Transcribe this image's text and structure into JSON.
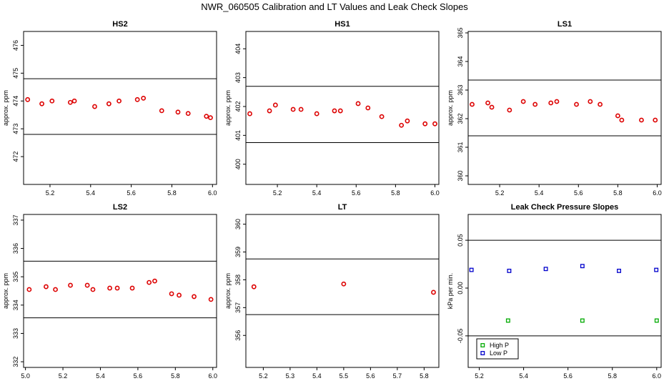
{
  "title": "NWR_060505  Calibration and LT Values and Leak Check Slopes",
  "chart_data": [
    {
      "type": "scatter",
      "title": "HS2",
      "ylabel": "approx. ppm",
      "xlim": [
        5.07,
        6.02
      ],
      "ylim": [
        471.0,
        476.5
      ],
      "xticks": [
        "5.2",
        "5.4",
        "5.6",
        "5.8",
        "6.0"
      ],
      "xtick_values": [
        5.2,
        5.4,
        5.6,
        5.8,
        6.0
      ],
      "yticks": [
        "472",
        "473",
        "474",
        "475",
        "476"
      ],
      "ytick_values": [
        472,
        473,
        474,
        475,
        476
      ],
      "hlines": [
        474.8,
        472.8
      ],
      "series": [
        {
          "color": "#dd0000",
          "marker": "circle",
          "x": [
            5.09,
            5.16,
            5.21,
            5.3,
            5.32,
            5.42,
            5.49,
            5.54,
            5.63,
            5.66,
            5.75,
            5.83,
            5.88,
            5.97,
            5.99
          ],
          "y": [
            474.05,
            473.9,
            474.0,
            473.95,
            474.0,
            473.8,
            473.9,
            474.0,
            474.05,
            474.1,
            473.65,
            473.6,
            473.55,
            473.45,
            473.4
          ]
        }
      ]
    },
    {
      "type": "scatter",
      "title": "HS1",
      "ylabel": "approx. ppm",
      "xlim": [
        5.04,
        6.02
      ],
      "ylim": [
        399.3,
        404.6
      ],
      "xticks": [
        "5.2",
        "5.4",
        "5.6",
        "5.8",
        "6.0"
      ],
      "xtick_values": [
        5.2,
        5.4,
        5.6,
        5.8,
        6.0
      ],
      "yticks": [
        "400",
        "401",
        "402",
        "403",
        "404"
      ],
      "yticks_values": [
        400,
        401,
        402,
        403,
        404
      ],
      "ytick_values": [
        400,
        401,
        402,
        403,
        404
      ],
      "hlines": [
        402.7,
        400.75
      ],
      "series": [
        {
          "color": "#dd0000",
          "marker": "circle",
          "x": [
            5.06,
            5.16,
            5.19,
            5.28,
            5.32,
            5.4,
            5.49,
            5.52,
            5.61,
            5.66,
            5.73,
            5.83,
            5.86,
            5.95,
            6.0
          ],
          "y": [
            401.75,
            401.85,
            402.05,
            401.9,
            401.9,
            401.75,
            401.85,
            401.85,
            402.1,
            401.95,
            401.65,
            401.35,
            401.5,
            401.4,
            401.4
          ]
        }
      ]
    },
    {
      "type": "scatter",
      "title": "LS1",
      "ylabel": "approx. ppm",
      "xlim": [
        5.04,
        6.02
      ],
      "ylim": [
        359.7,
        365.05
      ],
      "xticks": [
        "5.2",
        "5.4",
        "5.6",
        "5.8",
        "6.0"
      ],
      "xtick_values": [
        5.2,
        5.4,
        5.6,
        5.8,
        6.0
      ],
      "yticks": [
        "360",
        "361",
        "362",
        "363",
        "364",
        "365"
      ],
      "ytick_values": [
        360,
        361,
        362,
        363,
        364,
        365
      ],
      "hlines": [
        363.35,
        361.4
      ],
      "series": [
        {
          "color": "#dd0000",
          "marker": "circle",
          "x": [
            5.06,
            5.14,
            5.16,
            5.25,
            5.32,
            5.38,
            5.46,
            5.49,
            5.59,
            5.66,
            5.71,
            5.8,
            5.82,
            5.92,
            5.99
          ],
          "y": [
            362.5,
            362.55,
            362.4,
            362.3,
            362.6,
            362.5,
            362.55,
            362.6,
            362.5,
            362.6,
            362.5,
            362.1,
            361.95,
            361.95,
            361.95
          ]
        }
      ]
    },
    {
      "type": "scatter",
      "title": "LS2",
      "ylabel": "approx. ppm",
      "xlim": [
        4.99,
        6.02
      ],
      "ylim": [
        331.8,
        337.2
      ],
      "xticks": [
        "5.0",
        "5.2",
        "5.4",
        "5.6",
        "5.8",
        "6.0"
      ],
      "xtick_values": [
        5.0,
        5.2,
        5.4,
        5.6,
        5.8,
        6.0
      ],
      "yticks": [
        "332",
        "333",
        "334",
        "335",
        "336",
        "337"
      ],
      "ytick_values": [
        332,
        333,
        334,
        335,
        336,
        337
      ],
      "hlines": [
        335.55,
        333.55
      ],
      "series": [
        {
          "color": "#dd0000",
          "marker": "circle",
          "x": [
            5.02,
            5.11,
            5.16,
            5.24,
            5.33,
            5.36,
            5.45,
            5.49,
            5.57,
            5.66,
            5.69,
            5.78,
            5.82,
            5.9,
            5.99
          ],
          "y": [
            334.55,
            334.65,
            334.55,
            334.7,
            334.7,
            334.55,
            334.6,
            334.6,
            334.6,
            334.8,
            334.85,
            334.4,
            334.35,
            334.3,
            334.2
          ]
        }
      ]
    },
    {
      "type": "scatter",
      "title": "LT",
      "ylabel": "approx. ppm",
      "xlim": [
        5.135,
        5.855
      ],
      "ylim": [
        354.85,
        360.35
      ],
      "xticks": [
        "5.2",
        "5.3",
        "5.4",
        "5.5",
        "5.6",
        "5.7",
        "5.8"
      ],
      "xtick_values": [
        5.2,
        5.3,
        5.4,
        5.5,
        5.6,
        5.7,
        5.8
      ],
      "yticks": [
        "356",
        "357",
        "358",
        "359",
        "360"
      ],
      "ytick_values": [
        356,
        357,
        358,
        359,
        360
      ],
      "hlines": [
        358.75,
        356.75
      ],
      "series": [
        {
          "color": "#dd0000",
          "marker": "circle",
          "x": [
            5.165,
            5.5,
            5.835
          ],
          "y": [
            357.75,
            357.85,
            357.55
          ]
        }
      ]
    },
    {
      "type": "scatter",
      "title": "Leak Check Pressure Slopes",
      "ylabel": "kPa per min.",
      "xlim": [
        5.15,
        6.02
      ],
      "ylim": [
        -0.083,
        0.077
      ],
      "xticks": [
        "5.2",
        "5.4",
        "5.6",
        "5.8",
        "6.0"
      ],
      "xtick_values": [
        5.2,
        5.4,
        5.6,
        5.8,
        6.0
      ],
      "yticks": [
        "-0.05",
        "0.00",
        "0.05"
      ],
      "ytick_values": [
        -0.05,
        0.0,
        0.05
      ],
      "hlines": [
        0.05,
        -0.05
      ],
      "legend": {
        "placement": "bottom-left"
      },
      "series": [
        {
          "name": "High P",
          "color": "#00aa00",
          "marker": "square",
          "x": [
            5.33,
            5.665,
            6.0
          ],
          "y": [
            -0.034,
            -0.034,
            -0.034
          ]
        },
        {
          "name": "Low P",
          "color": "#0000cc",
          "marker": "square",
          "x": [
            5.165,
            5.335,
            5.5,
            5.665,
            5.83,
            5.998
          ],
          "y": [
            0.019,
            0.018,
            0.02,
            0.023,
            0.018,
            0.019
          ]
        }
      ]
    }
  ]
}
